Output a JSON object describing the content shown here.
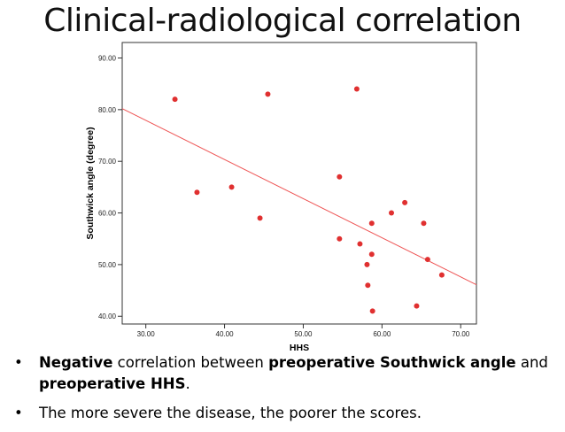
{
  "slide": {
    "title": "Clinical-radiological correlation",
    "bullets": [
      {
        "parts": [
          {
            "text": "Negative",
            "bold": true
          },
          {
            "text": " correlation between ",
            "bold": false
          },
          {
            "text": "preoperative Southwick angle",
            "bold": true
          },
          {
            "text": " and ",
            "bold": false
          },
          {
            "text": "preoperative HHS",
            "bold": true
          },
          {
            "text": ".",
            "bold": false
          }
        ]
      },
      {
        "parts": [
          {
            "text": "The more severe the disease, the poorer the scores.",
            "bold": false
          }
        ]
      }
    ]
  },
  "chart_data": {
    "type": "scatter",
    "title": "",
    "xlabel": "HHS",
    "ylabel": "Southwick angle (degree)",
    "xlim": [
      27,
      72
    ],
    "ylim": [
      38.5,
      93
    ],
    "x_ticks": [
      30,
      40,
      50,
      60,
      70
    ],
    "x_tick_labels": [
      "30.00",
      "40.00",
      "50.00",
      "60.00",
      "70.00"
    ],
    "y_ticks": [
      40,
      50,
      60,
      70,
      80,
      90
    ],
    "y_tick_labels": [
      "40.00",
      "50.00",
      "60.00",
      "70.00",
      "80.00",
      "90.00"
    ],
    "grid": false,
    "point_color": "#e03030",
    "line_color": "#ee5555",
    "series": [
      {
        "x": [
          33.7,
          36.5,
          40.9,
          44.5,
          45.5,
          54.6,
          54.6,
          56.8,
          57.2,
          58.1,
          58.2,
          58.7,
          58.7,
          58.8,
          61.2,
          62.9,
          64.4,
          65.3,
          65.8,
          67.6
        ],
        "y": [
          82,
          64,
          65,
          59,
          83,
          67,
          55,
          84,
          54,
          50,
          46,
          52,
          58,
          41,
          60,
          62,
          42,
          58,
          51,
          48
        ]
      }
    ],
    "fit_line": {
      "x": [
        27,
        72
      ],
      "y": [
        80.2,
        46.1
      ]
    }
  }
}
